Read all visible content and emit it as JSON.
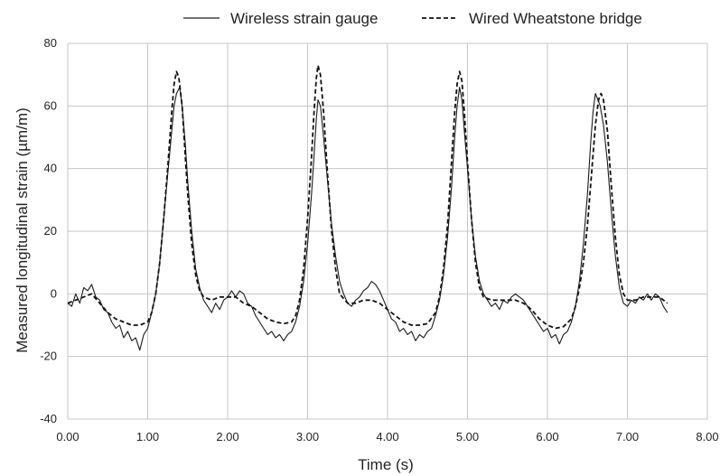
{
  "chart_data": {
    "type": "line",
    "title": "",
    "xlabel": "Time (s)",
    "ylabel": "Measured longitudinal strain (µm/m)",
    "xlim": [
      0,
      8
    ],
    "ylim": [
      -40,
      80
    ],
    "xticks": [
      "0.00",
      "1.00",
      "2.00",
      "3.00",
      "4.00",
      "5.00",
      "6.00",
      "7.00",
      "8.00"
    ],
    "yticks": [
      "-40",
      "-20",
      "0",
      "20",
      "40",
      "60",
      "80"
    ],
    "grid": true,
    "legend_position": "top",
    "series": [
      {
        "name": "Wireless strain gauge",
        "style": "solid",
        "color": "#1a1a1a",
        "points": [
          [
            0.0,
            -3
          ],
          [
            0.05,
            -4
          ],
          [
            0.1,
            0
          ],
          [
            0.15,
            -3
          ],
          [
            0.2,
            2
          ],
          [
            0.25,
            1
          ],
          [
            0.3,
            3
          ],
          [
            0.35,
            -1
          ],
          [
            0.4,
            -2
          ],
          [
            0.45,
            -5
          ],
          [
            0.5,
            -6
          ],
          [
            0.55,
            -9
          ],
          [
            0.6,
            -11
          ],
          [
            0.65,
            -10
          ],
          [
            0.7,
            -14
          ],
          [
            0.75,
            -12
          ],
          [
            0.8,
            -15
          ],
          [
            0.85,
            -14
          ],
          [
            0.9,
            -18
          ],
          [
            0.95,
            -13
          ],
          [
            1.0,
            -11
          ],
          [
            1.05,
            -6
          ],
          [
            1.1,
            0
          ],
          [
            1.15,
            10
          ],
          [
            1.2,
            24
          ],
          [
            1.25,
            38
          ],
          [
            1.3,
            52
          ],
          [
            1.33,
            60
          ],
          [
            1.36,
            64
          ],
          [
            1.4,
            66
          ],
          [
            1.43,
            60
          ],
          [
            1.47,
            48
          ],
          [
            1.5,
            36
          ],
          [
            1.55,
            20
          ],
          [
            1.6,
            8
          ],
          [
            1.65,
            2
          ],
          [
            1.7,
            -2
          ],
          [
            1.75,
            -4
          ],
          [
            1.8,
            -6
          ],
          [
            1.85,
            -3
          ],
          [
            1.9,
            -5
          ],
          [
            1.95,
            -2
          ],
          [
            2.0,
            -1
          ],
          [
            2.05,
            1
          ],
          [
            2.1,
            -1
          ],
          [
            2.15,
            1
          ],
          [
            2.2,
            0
          ],
          [
            2.25,
            -3
          ],
          [
            2.3,
            -4
          ],
          [
            2.35,
            -7
          ],
          [
            2.4,
            -9
          ],
          [
            2.45,
            -11
          ],
          [
            2.5,
            -13
          ],
          [
            2.55,
            -12
          ],
          [
            2.6,
            -14
          ],
          [
            2.65,
            -13
          ],
          [
            2.7,
            -15
          ],
          [
            2.75,
            -13
          ],
          [
            2.8,
            -12
          ],
          [
            2.85,
            -9
          ],
          [
            2.9,
            -4
          ],
          [
            2.95,
            4
          ],
          [
            3.0,
            16
          ],
          [
            3.05,
            32
          ],
          [
            3.08,
            44
          ],
          [
            3.11,
            56
          ],
          [
            3.13,
            62
          ],
          [
            3.16,
            60
          ],
          [
            3.2,
            50
          ],
          [
            3.25,
            36
          ],
          [
            3.3,
            22
          ],
          [
            3.35,
            12
          ],
          [
            3.4,
            4
          ],
          [
            3.45,
            0
          ],
          [
            3.5,
            -3
          ],
          [
            3.55,
            -4
          ],
          [
            3.6,
            -2
          ],
          [
            3.65,
            -1
          ],
          [
            3.7,
            1
          ],
          [
            3.75,
            2
          ],
          [
            3.8,
            4
          ],
          [
            3.85,
            3
          ],
          [
            3.9,
            1
          ],
          [
            3.95,
            -2
          ],
          [
            4.0,
            -5
          ],
          [
            4.05,
            -8
          ],
          [
            4.1,
            -9
          ],
          [
            4.15,
            -12
          ],
          [
            4.2,
            -11
          ],
          [
            4.25,
            -13
          ],
          [
            4.3,
            -12
          ],
          [
            4.35,
            -15
          ],
          [
            4.4,
            -13
          ],
          [
            4.45,
            -14
          ],
          [
            4.5,
            -12
          ],
          [
            4.55,
            -11
          ],
          [
            4.6,
            -7
          ],
          [
            4.65,
            -2
          ],
          [
            4.7,
            6
          ],
          [
            4.75,
            18
          ],
          [
            4.8,
            34
          ],
          [
            4.84,
            50
          ],
          [
            4.87,
            60
          ],
          [
            4.9,
            66
          ],
          [
            4.93,
            62
          ],
          [
            4.96,
            52
          ],
          [
            5.0,
            40
          ],
          [
            5.05,
            24
          ],
          [
            5.1,
            12
          ],
          [
            5.15,
            4
          ],
          [
            5.2,
            0
          ],
          [
            5.25,
            -2
          ],
          [
            5.3,
            -4
          ],
          [
            5.35,
            -3
          ],
          [
            5.4,
            -5
          ],
          [
            5.45,
            -2
          ],
          [
            5.5,
            -3
          ],
          [
            5.55,
            -1
          ],
          [
            5.6,
            0
          ],
          [
            5.65,
            -1
          ],
          [
            5.7,
            -2
          ],
          [
            5.75,
            -4
          ],
          [
            5.8,
            -6
          ],
          [
            5.85,
            -8
          ],
          [
            5.9,
            -10
          ],
          [
            5.95,
            -12
          ],
          [
            6.0,
            -11
          ],
          [
            6.05,
            -14
          ],
          [
            6.1,
            -13
          ],
          [
            6.15,
            -16
          ],
          [
            6.2,
            -13
          ],
          [
            6.25,
            -12
          ],
          [
            6.3,
            -9
          ],
          [
            6.35,
            -4
          ],
          [
            6.4,
            4
          ],
          [
            6.45,
            16
          ],
          [
            6.5,
            32
          ],
          [
            6.54,
            48
          ],
          [
            6.57,
            58
          ],
          [
            6.6,
            64
          ],
          [
            6.63,
            62
          ],
          [
            6.66,
            60
          ],
          [
            6.7,
            54
          ],
          [
            6.75,
            42
          ],
          [
            6.8,
            26
          ],
          [
            6.85,
            12
          ],
          [
            6.9,
            2
          ],
          [
            6.95,
            -3
          ],
          [
            7.0,
            -4
          ],
          [
            7.05,
            -2
          ],
          [
            7.1,
            -3
          ],
          [
            7.15,
            -1
          ],
          [
            7.2,
            -2
          ],
          [
            7.25,
            0
          ],
          [
            7.3,
            -2
          ],
          [
            7.35,
            0
          ],
          [
            7.4,
            -1
          ],
          [
            7.45,
            -4
          ],
          [
            7.5,
            -6
          ]
        ]
      },
      {
        "name": "Wired Wheatstone bridge",
        "style": "dashed",
        "color": "#111111",
        "points": [
          [
            0.0,
            -3
          ],
          [
            0.1,
            -2
          ],
          [
            0.2,
            -1
          ],
          [
            0.3,
            0
          ],
          [
            0.4,
            -3
          ],
          [
            0.5,
            -6
          ],
          [
            0.6,
            -8
          ],
          [
            0.7,
            -9
          ],
          [
            0.8,
            -10
          ],
          [
            0.9,
            -10
          ],
          [
            1.0,
            -9
          ],
          [
            1.05,
            -6
          ],
          [
            1.1,
            0
          ],
          [
            1.15,
            10
          ],
          [
            1.2,
            24
          ],
          [
            1.25,
            40
          ],
          [
            1.3,
            58
          ],
          [
            1.33,
            67
          ],
          [
            1.36,
            71
          ],
          [
            1.39,
            69
          ],
          [
            1.43,
            60
          ],
          [
            1.47,
            44
          ],
          [
            1.5,
            32
          ],
          [
            1.55,
            16
          ],
          [
            1.6,
            6
          ],
          [
            1.65,
            1
          ],
          [
            1.7,
            -1
          ],
          [
            1.8,
            -2
          ],
          [
            1.9,
            -1
          ],
          [
            2.0,
            -1
          ],
          [
            2.1,
            -1
          ],
          [
            2.2,
            -3
          ],
          [
            2.3,
            -4
          ],
          [
            2.4,
            -6
          ],
          [
            2.5,
            -8
          ],
          [
            2.6,
            -9
          ],
          [
            2.7,
            -9.5
          ],
          [
            2.8,
            -9
          ],
          [
            2.85,
            -7
          ],
          [
            2.9,
            -2
          ],
          [
            2.95,
            8
          ],
          [
            3.0,
            24
          ],
          [
            3.05,
            44
          ],
          [
            3.08,
            58
          ],
          [
            3.11,
            69
          ],
          [
            3.13,
            73
          ],
          [
            3.16,
            70
          ],
          [
            3.2,
            58
          ],
          [
            3.25,
            38
          ],
          [
            3.3,
            20
          ],
          [
            3.35,
            8
          ],
          [
            3.4,
            0
          ],
          [
            3.5,
            -3
          ],
          [
            3.6,
            -3
          ],
          [
            3.7,
            -2
          ],
          [
            3.8,
            -2
          ],
          [
            3.9,
            -3
          ],
          [
            4.0,
            -5
          ],
          [
            4.1,
            -7
          ],
          [
            4.2,
            -9
          ],
          [
            4.3,
            -10
          ],
          [
            4.4,
            -10
          ],
          [
            4.5,
            -9.5
          ],
          [
            4.6,
            -6
          ],
          [
            4.65,
            -1
          ],
          [
            4.7,
            8
          ],
          [
            4.75,
            22
          ],
          [
            4.8,
            42
          ],
          [
            4.84,
            58
          ],
          [
            4.87,
            67
          ],
          [
            4.9,
            71
          ],
          [
            4.93,
            68
          ],
          [
            4.96,
            58
          ],
          [
            5.0,
            42
          ],
          [
            5.05,
            24
          ],
          [
            5.1,
            10
          ],
          [
            5.15,
            2
          ],
          [
            5.2,
            -1
          ],
          [
            5.3,
            -2
          ],
          [
            5.4,
            -2
          ],
          [
            5.5,
            -2
          ],
          [
            5.6,
            -2
          ],
          [
            5.7,
            -3
          ],
          [
            5.8,
            -5
          ],
          [
            5.9,
            -8
          ],
          [
            6.0,
            -10
          ],
          [
            6.1,
            -11
          ],
          [
            6.2,
            -10.5
          ],
          [
            6.3,
            -8
          ],
          [
            6.35,
            -4
          ],
          [
            6.4,
            2
          ],
          [
            6.45,
            10
          ],
          [
            6.5,
            22
          ],
          [
            6.55,
            38
          ],
          [
            6.6,
            54
          ],
          [
            6.64,
            62
          ],
          [
            6.67,
            64
          ],
          [
            6.7,
            62
          ],
          [
            6.75,
            52
          ],
          [
            6.8,
            34
          ],
          [
            6.85,
            18
          ],
          [
            6.9,
            6
          ],
          [
            6.95,
            0
          ],
          [
            7.0,
            -2
          ],
          [
            7.1,
            -2
          ],
          [
            7.2,
            -1
          ],
          [
            7.3,
            -1
          ],
          [
            7.4,
            -1
          ],
          [
            7.5,
            -3
          ]
        ]
      }
    ]
  }
}
